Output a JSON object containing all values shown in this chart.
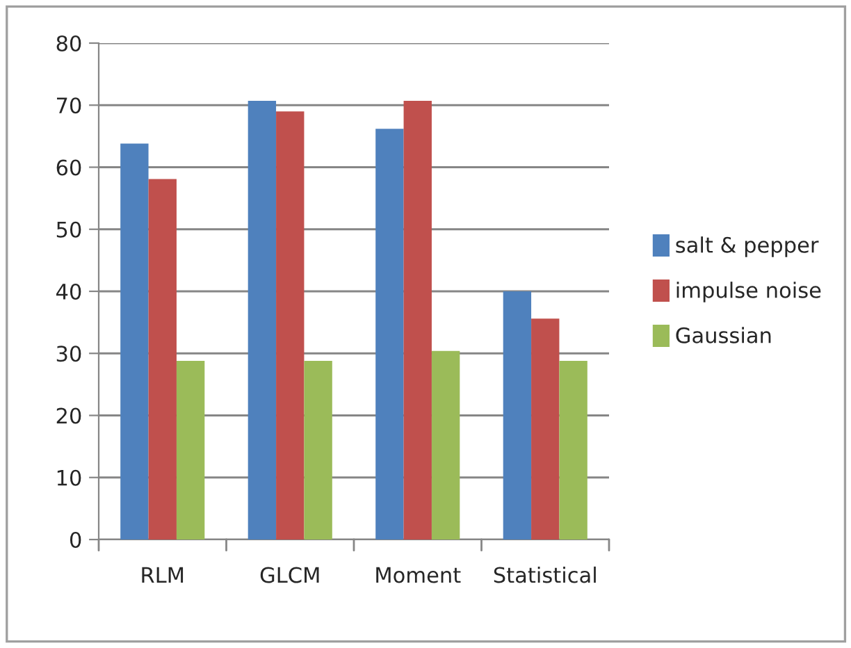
{
  "chart_data": {
    "type": "bar",
    "categories": [
      "RLM",
      "GLCM",
      "Moment",
      "Statistical"
    ],
    "series": [
      {
        "name": "salt & pepper",
        "color": "#4f81bd",
        "values": [
          63.8,
          70.7,
          66.2,
          40.0
        ]
      },
      {
        "name": "impulse noise",
        "color": "#c0504d",
        "values": [
          58.1,
          69.0,
          70.7,
          35.6
        ]
      },
      {
        "name": "Gaussian",
        "color": "#9bbb59",
        "values": [
          28.8,
          28.8,
          30.4,
          28.8
        ]
      }
    ],
    "ylim": [
      0,
      80
    ],
    "yticks": [
      0,
      10,
      20,
      30,
      40,
      50,
      60,
      70,
      80
    ],
    "grid": "y",
    "legend": "right"
  }
}
